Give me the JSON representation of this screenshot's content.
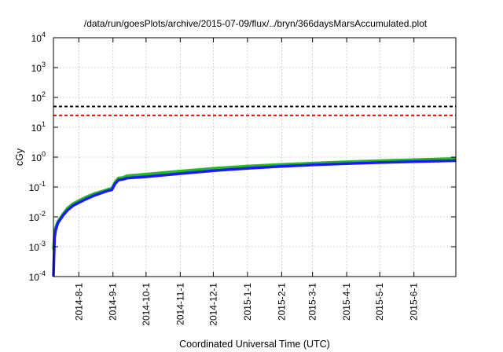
{
  "chart_data": {
    "type": "line",
    "title": "/data/run/goesPlots/archive/2015-07-09/flux/../bryn/366daysMarsAccumulated.plot",
    "xlabel": "Coordinated Universal Time (UTC)",
    "ylabel": "cGy",
    "y_scale": "log",
    "ylim": [
      0.0001,
      10000
    ],
    "xlim": [
      "2014-07-09",
      "2015-07-09"
    ],
    "grid": true,
    "x_ticks": [
      "2014-8-1",
      "2014-9-1",
      "2014-10-1",
      "2014-11-1",
      "2014-12-1",
      "2015-1-1",
      "2015-2-1",
      "2015-3-1",
      "2015-4-1",
      "2015-5-1",
      "2015-6-1"
    ],
    "y_ticks": [
      {
        "value": 0.0001,
        "base": "10",
        "exp": "-4"
      },
      {
        "value": 0.001,
        "base": "10",
        "exp": "-3"
      },
      {
        "value": 0.01,
        "base": "10",
        "exp": "-2"
      },
      {
        "value": 0.1,
        "base": "10",
        "exp": "-1"
      },
      {
        "value": 1,
        "base": "10",
        "exp": "0"
      },
      {
        "value": 10,
        "base": "10",
        "exp": "1"
      },
      {
        "value": 100,
        "base": "10",
        "exp": "2"
      },
      {
        "value": 1000,
        "base": "10",
        "exp": "3"
      },
      {
        "value": 10000,
        "base": "10",
        "exp": "4"
      }
    ],
    "reference_lines": [
      {
        "value": 50,
        "color": "#000000",
        "style": "dashed"
      },
      {
        "value": 25,
        "color": "#ff0000",
        "style": "dashed"
      }
    ],
    "series": [
      {
        "color": "#22bb22",
        "x": [
          "2014-07-09",
          "2014-07-10",
          "2014-07-11",
          "2014-07-13",
          "2014-07-15",
          "2014-07-18",
          "2014-07-22",
          "2014-07-27",
          "2014-08-01",
          "2014-08-08",
          "2014-08-15",
          "2014-08-22",
          "2014-08-28",
          "2014-08-31",
          "2014-09-03",
          "2014-09-06",
          "2014-09-10",
          "2014-09-14",
          "2014-10-01",
          "2014-11-01",
          "2014-12-01",
          "2015-01-01",
          "2015-02-01",
          "2015-03-01",
          "2015-04-01",
          "2015-05-01",
          "2015-06-01",
          "2015-07-09"
        ],
        "values": [
          0.0008,
          0.003,
          0.0045,
          0.007,
          0.009,
          0.013,
          0.02,
          0.028,
          0.035,
          0.047,
          0.06,
          0.072,
          0.085,
          0.09,
          0.15,
          0.2,
          0.21,
          0.24,
          0.27,
          0.34,
          0.42,
          0.5,
          0.57,
          0.63,
          0.7,
          0.76,
          0.82,
          0.9
        ]
      },
      {
        "color": "#1a1aff",
        "x": [
          "2014-07-09",
          "2014-07-10",
          "2014-07-11",
          "2014-07-13",
          "2014-07-15",
          "2014-07-18",
          "2014-07-22",
          "2014-07-27",
          "2014-08-01",
          "2014-08-08",
          "2014-08-15",
          "2014-08-22",
          "2014-08-28",
          "2014-08-31",
          "2014-09-03",
          "2014-09-06",
          "2014-09-10",
          "2014-09-14",
          "2014-10-01",
          "2014-11-01",
          "2014-12-01",
          "2015-01-01",
          "2015-02-01",
          "2015-03-01",
          "2015-04-01",
          "2015-05-01",
          "2015-06-01",
          "2015-07-09"
        ],
        "values": [
          0.0001,
          0.002,
          0.0035,
          0.0062,
          0.008,
          0.0115,
          0.017,
          0.024,
          0.03,
          0.04,
          0.052,
          0.064,
          0.076,
          0.08,
          0.13,
          0.17,
          0.18,
          0.2,
          0.22,
          0.28,
          0.35,
          0.42,
          0.49,
          0.55,
          0.61,
          0.66,
          0.71,
          0.76
        ]
      }
    ]
  }
}
